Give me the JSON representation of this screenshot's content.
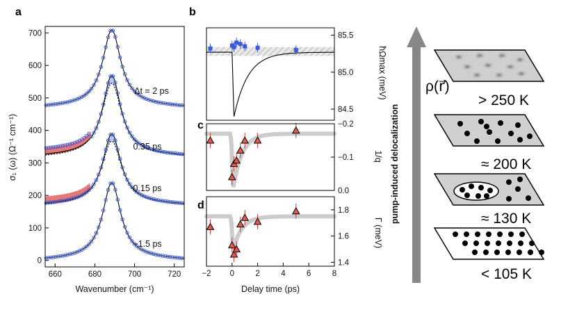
{
  "chart_data": [
    {
      "panel": "a",
      "type": "line",
      "xlabel": "Wavenumber (cm⁻¹)",
      "ylabel": "σ₁ (ω) (Ω⁻¹ cm⁻¹)",
      "xlim": [
        655,
        725
      ],
      "ylim": [
        -20,
        720
      ],
      "xticks": [
        "660",
        "680",
        "700",
        "720"
      ],
      "yticks": [
        "0",
        "100",
        "200",
        "300",
        "400",
        "500",
        "600",
        "700"
      ],
      "series": [
        {
          "name": "Δt = 2 ps",
          "offset": 470,
          "amplitude": 230,
          "label": "Δt = 2 ps"
        },
        {
          "name": "0.35 ps",
          "offset": 320,
          "amplitude": 240,
          "label": "0.35 ps"
        },
        {
          "name": "0.15 ps",
          "offset": 170,
          "amplitude": 210,
          "label": "0.15 ps"
        },
        {
          "name": "−1.5 ps",
          "offset": 0,
          "amplitude": 230,
          "label": "−1.5 ps"
        }
      ]
    },
    {
      "panel": "b",
      "type": "scatter",
      "ylabel": "ħΩmax (meV)",
      "xlim": [
        -2,
        8
      ],
      "ylim": [
        84.35,
        85.6
      ],
      "yticks": [
        "84.5",
        "85.0",
        "85.5"
      ],
      "points_x": [
        -1.7,
        0,
        0.15,
        0.35,
        0.65,
        1,
        2,
        5
      ],
      "points_y": [
        85.32,
        85.36,
        85.34,
        85.4,
        85.38,
        85.35,
        85.33,
        85.3
      ],
      "model_baseline": 85.27,
      "model_min": 84.4
    },
    {
      "panel": "c",
      "type": "scatter",
      "ylabel": "1/q",
      "xlim": [
        -2,
        8
      ],
      "ylim": [
        0,
        -0.2
      ],
      "yticks": [
        "−0.2",
        "−0.1",
        "0.0"
      ],
      "points_x": [
        -1.7,
        0,
        0.15,
        0.35,
        0.65,
        1,
        2,
        5
      ],
      "points_y": [
        -0.15,
        -0.04,
        -0.08,
        -0.09,
        -0.12,
        -0.15,
        -0.15,
        -0.18
      ],
      "baseline": -0.17,
      "minimum": -0.01
    },
    {
      "panel": "d",
      "type": "scatter",
      "ylabel": "Γ (meV)",
      "xlabel": "Delay time (ps)",
      "xlim": [
        -2,
        8
      ],
      "ylim": [
        1.37,
        1.9
      ],
      "yticks": [
        "1.4",
        "1.6",
        "1.8"
      ],
      "xticks": [
        "−2",
        "0",
        "2",
        "4",
        "6",
        "8"
      ],
      "points_x": [
        -1.7,
        0,
        0.15,
        0.35,
        0.65,
        1,
        2,
        5
      ],
      "points_y": [
        1.67,
        1.53,
        1.46,
        1.5,
        1.69,
        1.74,
        1.71,
        1.79
      ],
      "baseline": 1.75,
      "minimum": 1.5
    }
  ],
  "labels": {
    "a": "a",
    "b": "b",
    "c": "c",
    "d": "d"
  },
  "schematic": {
    "arrow_label": "pump-induced delocalization",
    "rho_label": "ρ(r⃗)",
    "temperatures": [
      "> 250 K",
      "≈ 200 K",
      "≈ 130 K",
      "< 105 K"
    ]
  },
  "colors": {
    "data_points": "#3a5bd9",
    "fill_positive": "#b8c8ee",
    "fill_negative": "#e06060",
    "triangle": "#e05a4e",
    "band": "#cccccc",
    "arrow": "#888888"
  }
}
